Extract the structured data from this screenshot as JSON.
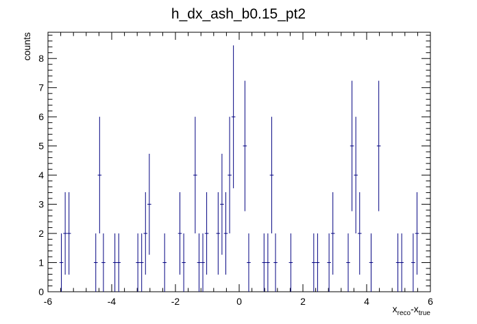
{
  "chart_data": {
    "type": "histogram",
    "title": "h_dx_ash_b0.15_pt2",
    "xlabel": {
      "base": "x",
      "sub1": "reco",
      "sep": "-x",
      "sub2": "true"
    },
    "ylabel": "counts",
    "xlim": [
      -6,
      6
    ],
    "ylim": [
      0,
      8.9
    ],
    "grid": false,
    "legend": "none",
    "bin_width": 0.12,
    "bins_low_edge_first": -6.0,
    "x_ticks": [
      "-6",
      "-4",
      "-2",
      "0",
      "2",
      "4",
      "6"
    ],
    "y_ticks": [
      "0",
      "1",
      "2",
      "3",
      "4",
      "5",
      "6",
      "7",
      "8"
    ],
    "color": "#000080",
    "points": [
      {
        "x": -5.58,
        "y": 1
      },
      {
        "x": -5.46,
        "y": 2
      },
      {
        "x": -5.34,
        "y": 2
      },
      {
        "x": -4.5,
        "y": 1
      },
      {
        "x": -4.38,
        "y": 4
      },
      {
        "x": -4.26,
        "y": 1
      },
      {
        "x": -3.9,
        "y": 1
      },
      {
        "x": -3.78,
        "y": 1
      },
      {
        "x": -3.18,
        "y": 1
      },
      {
        "x": -3.06,
        "y": 1
      },
      {
        "x": -2.94,
        "y": 2
      },
      {
        "x": -2.82,
        "y": 3
      },
      {
        "x": -2.34,
        "y": 1
      },
      {
        "x": -1.86,
        "y": 2
      },
      {
        "x": -1.74,
        "y": 1
      },
      {
        "x": -1.38,
        "y": 4
      },
      {
        "x": -1.26,
        "y": 1
      },
      {
        "x": -1.14,
        "y": 1
      },
      {
        "x": -1.02,
        "y": 2
      },
      {
        "x": -0.66,
        "y": 2
      },
      {
        "x": -0.54,
        "y": 3
      },
      {
        "x": -0.42,
        "y": 2
      },
      {
        "x": -0.3,
        "y": 4
      },
      {
        "x": -0.18,
        "y": 6
      },
      {
        "x": 0.18,
        "y": 5
      },
      {
        "x": 0.3,
        "y": 1
      },
      {
        "x": 0.78,
        "y": 1
      },
      {
        "x": 0.9,
        "y": 1
      },
      {
        "x": 1.02,
        "y": 4
      },
      {
        "x": 1.14,
        "y": 1
      },
      {
        "x": 1.62,
        "y": 1
      },
      {
        "x": 2.34,
        "y": 1
      },
      {
        "x": 2.46,
        "y": 1
      },
      {
        "x": 2.82,
        "y": 1
      },
      {
        "x": 2.94,
        "y": 2
      },
      {
        "x": 3.42,
        "y": 1
      },
      {
        "x": 3.54,
        "y": 5
      },
      {
        "x": 3.66,
        "y": 4
      },
      {
        "x": 3.78,
        "y": 2
      },
      {
        "x": 4.14,
        "y": 1
      },
      {
        "x": 4.38,
        "y": 5
      },
      {
        "x": 4.98,
        "y": 1
      },
      {
        "x": 5.1,
        "y": 1
      },
      {
        "x": 5.46,
        "y": 1
      },
      {
        "x": 5.58,
        "y": 2
      }
    ]
  }
}
